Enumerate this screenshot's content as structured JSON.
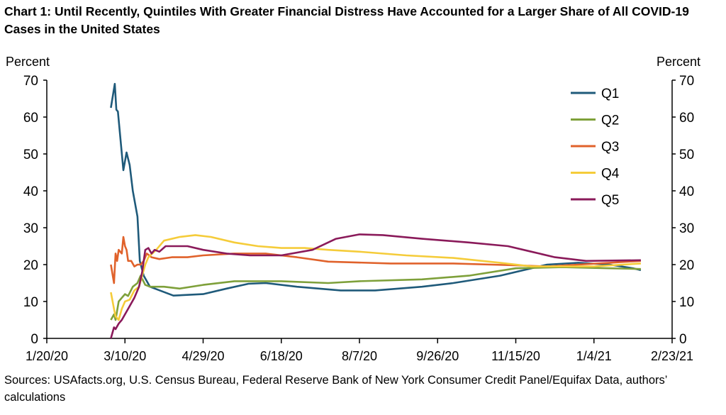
{
  "chart_data": {
    "type": "line",
    "title": "Chart 1: Until Recently, Quintiles With Greater Financial Distress Have Accounted for a Larger Share of All COVID-19 Cases in the United States",
    "ylabel_left": "Percent",
    "ylabel_right": "Percent",
    "ylim": [
      0,
      70
    ],
    "yticks": [
      0,
      10,
      20,
      30,
      40,
      50,
      60,
      70
    ],
    "x_unit": "days since 1/20/20",
    "xlim": [
      0,
      400
    ],
    "xticks": [
      {
        "day": 0,
        "label": "1/20/20"
      },
      {
        "day": 50,
        "label": "3/10/20"
      },
      {
        "day": 100,
        "label": "4/29/20"
      },
      {
        "day": 150,
        "label": "6/18/20"
      },
      {
        "day": 200,
        "label": "8/7/20"
      },
      {
        "day": 250,
        "label": "9/26/20"
      },
      {
        "day": 300,
        "label": "11/15/20"
      },
      {
        "day": 350,
        "label": "1/4/21"
      },
      {
        "day": 400,
        "label": "2/23/21"
      }
    ],
    "legend_position": "top-right",
    "series": [
      {
        "name": "Q1",
        "color": "#1f5a7a",
        "points": [
          [
            41,
            62.5
          ],
          [
            43.5,
            69
          ],
          [
            44.5,
            62
          ],
          [
            45.5,
            61.5
          ],
          [
            49,
            45.6
          ],
          [
            51,
            50.4
          ],
          [
            53,
            47
          ],
          [
            55,
            40
          ],
          [
            58,
            33
          ],
          [
            59.5,
            21
          ],
          [
            62,
            17
          ],
          [
            66,
            14
          ],
          [
            81,
            11.6
          ],
          [
            100,
            12
          ],
          [
            115,
            13.5
          ],
          [
            129,
            14.8
          ],
          [
            140,
            15
          ],
          [
            160,
            14
          ],
          [
            188,
            13
          ],
          [
            210,
            13
          ],
          [
            240,
            14
          ],
          [
            260,
            15
          ],
          [
            290,
            17
          ],
          [
            320,
            20
          ],
          [
            340,
            20.5
          ],
          [
            360,
            20
          ],
          [
            375,
            19
          ],
          [
            380,
            18.5
          ]
        ]
      },
      {
        "name": "Q2",
        "color": "#7ea03a",
        "points": [
          [
            41,
            5
          ],
          [
            43,
            6.5
          ],
          [
            44,
            5
          ],
          [
            46,
            10
          ],
          [
            48,
            11
          ],
          [
            50,
            12
          ],
          [
            52,
            11.5
          ],
          [
            55,
            14
          ],
          [
            58,
            15
          ],
          [
            60,
            17
          ],
          [
            63,
            14.5
          ],
          [
            66,
            14
          ],
          [
            75,
            14
          ],
          [
            85,
            13.5
          ],
          [
            100,
            14.5
          ],
          [
            120,
            15.5
          ],
          [
            150,
            15.5
          ],
          [
            180,
            15
          ],
          [
            200,
            15.5
          ],
          [
            240,
            16
          ],
          [
            270,
            17
          ],
          [
            300,
            19
          ],
          [
            330,
            19.3
          ],
          [
            360,
            19
          ],
          [
            380,
            18.8
          ]
        ]
      },
      {
        "name": "Q3",
        "color": "#e0622b",
        "points": [
          [
            41,
            20
          ],
          [
            43,
            15
          ],
          [
            44,
            23
          ],
          [
            45,
            21
          ],
          [
            46,
            24
          ],
          [
            48,
            23
          ],
          [
            49,
            27.5
          ],
          [
            50,
            25
          ],
          [
            51,
            24
          ],
          [
            52,
            21
          ],
          [
            54,
            21
          ],
          [
            56,
            19.5
          ],
          [
            58,
            20
          ],
          [
            60,
            20
          ],
          [
            62,
            21
          ],
          [
            64,
            23
          ],
          [
            67,
            22
          ],
          [
            72,
            21.5
          ],
          [
            80,
            22
          ],
          [
            90,
            22
          ],
          [
            100,
            22.5
          ],
          [
            120,
            23
          ],
          [
            140,
            23
          ],
          [
            160,
            22
          ],
          [
            180,
            20.8
          ],
          [
            220,
            20.3
          ],
          [
            260,
            20.3
          ],
          [
            300,
            19.8
          ],
          [
            320,
            19.5
          ],
          [
            340,
            20
          ],
          [
            360,
            20.5
          ],
          [
            380,
            21
          ]
        ]
      },
      {
        "name": "Q4",
        "color": "#f5cc3a",
        "points": [
          [
            41,
            12.5
          ],
          [
            43,
            8
          ],
          [
            44,
            6
          ],
          [
            46,
            5
          ],
          [
            48,
            8
          ],
          [
            50,
            10
          ],
          [
            53,
            10.5
          ],
          [
            56,
            13
          ],
          [
            59,
            14
          ],
          [
            61,
            17
          ],
          [
            63,
            20
          ],
          [
            65,
            22
          ],
          [
            70,
            24
          ],
          [
            75,
            26.5
          ],
          [
            85,
            27.5
          ],
          [
            95,
            28
          ],
          [
            105,
            27.5
          ],
          [
            120,
            26
          ],
          [
            135,
            25
          ],
          [
            150,
            24.5
          ],
          [
            165,
            24.5
          ],
          [
            180,
            24
          ],
          [
            200,
            23.5
          ],
          [
            230,
            22.5
          ],
          [
            260,
            21.8
          ],
          [
            290,
            20.5
          ],
          [
            310,
            19.5
          ],
          [
            330,
            19.5
          ],
          [
            350,
            19.5
          ],
          [
            380,
            20.3
          ]
        ]
      },
      {
        "name": "Q5",
        "color": "#8a1a5a",
        "points": [
          [
            41,
            0
          ],
          [
            43,
            3
          ],
          [
            44,
            2.5
          ],
          [
            46,
            4
          ],
          [
            48,
            5
          ],
          [
            52,
            8
          ],
          [
            56,
            11
          ],
          [
            59,
            14
          ],
          [
            61,
            18
          ],
          [
            63,
            24
          ],
          [
            65,
            24.5
          ],
          [
            67,
            23
          ],
          [
            69,
            24
          ],
          [
            72,
            23.5
          ],
          [
            76,
            25
          ],
          [
            90,
            25
          ],
          [
            100,
            24
          ],
          [
            115,
            23
          ],
          [
            130,
            22.5
          ],
          [
            150,
            22.5
          ],
          [
            170,
            24
          ],
          [
            185,
            27
          ],
          [
            200,
            28.2
          ],
          [
            215,
            28
          ],
          [
            240,
            27
          ],
          [
            270,
            26
          ],
          [
            295,
            25
          ],
          [
            310,
            23.5
          ],
          [
            325,
            22
          ],
          [
            345,
            21
          ],
          [
            380,
            21.2
          ]
        ]
      }
    ]
  },
  "sources": "Sources: USAfacts.org, U.S. Census Bureau, Federal Reserve Bank of New York Consumer Credit Panel/Equifax Data, authors’ calculations"
}
